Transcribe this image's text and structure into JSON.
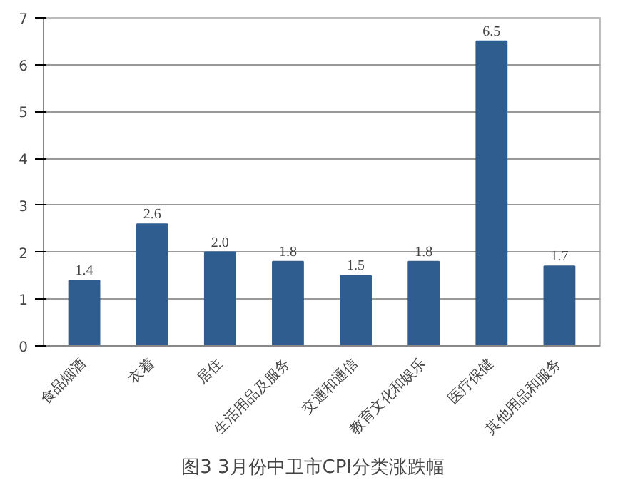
{
  "chart_data": {
    "type": "bar",
    "title": "图3    3月份中卫市CPI分类涨跌幅",
    "categories": [
      "食品烟酒",
      "衣着",
      "居住",
      "生活用品及服务",
      "交通和通信",
      "教育文化和娱乐",
      "医疗保健",
      "其他用品和服务"
    ],
    "values": [
      1.4,
      2.6,
      2.0,
      1.8,
      1.5,
      1.8,
      6.5,
      1.7
    ],
    "value_labels": [
      "1.4",
      "2.6",
      "2.0",
      "1.8",
      "1.5",
      "1.8",
      "6.5",
      "1.7"
    ],
    "color": "#2f5d8f",
    "ylim": [
      0,
      7
    ],
    "yticks": [
      0,
      1,
      2,
      3,
      4,
      5,
      6,
      7
    ],
    "grid": "y"
  }
}
